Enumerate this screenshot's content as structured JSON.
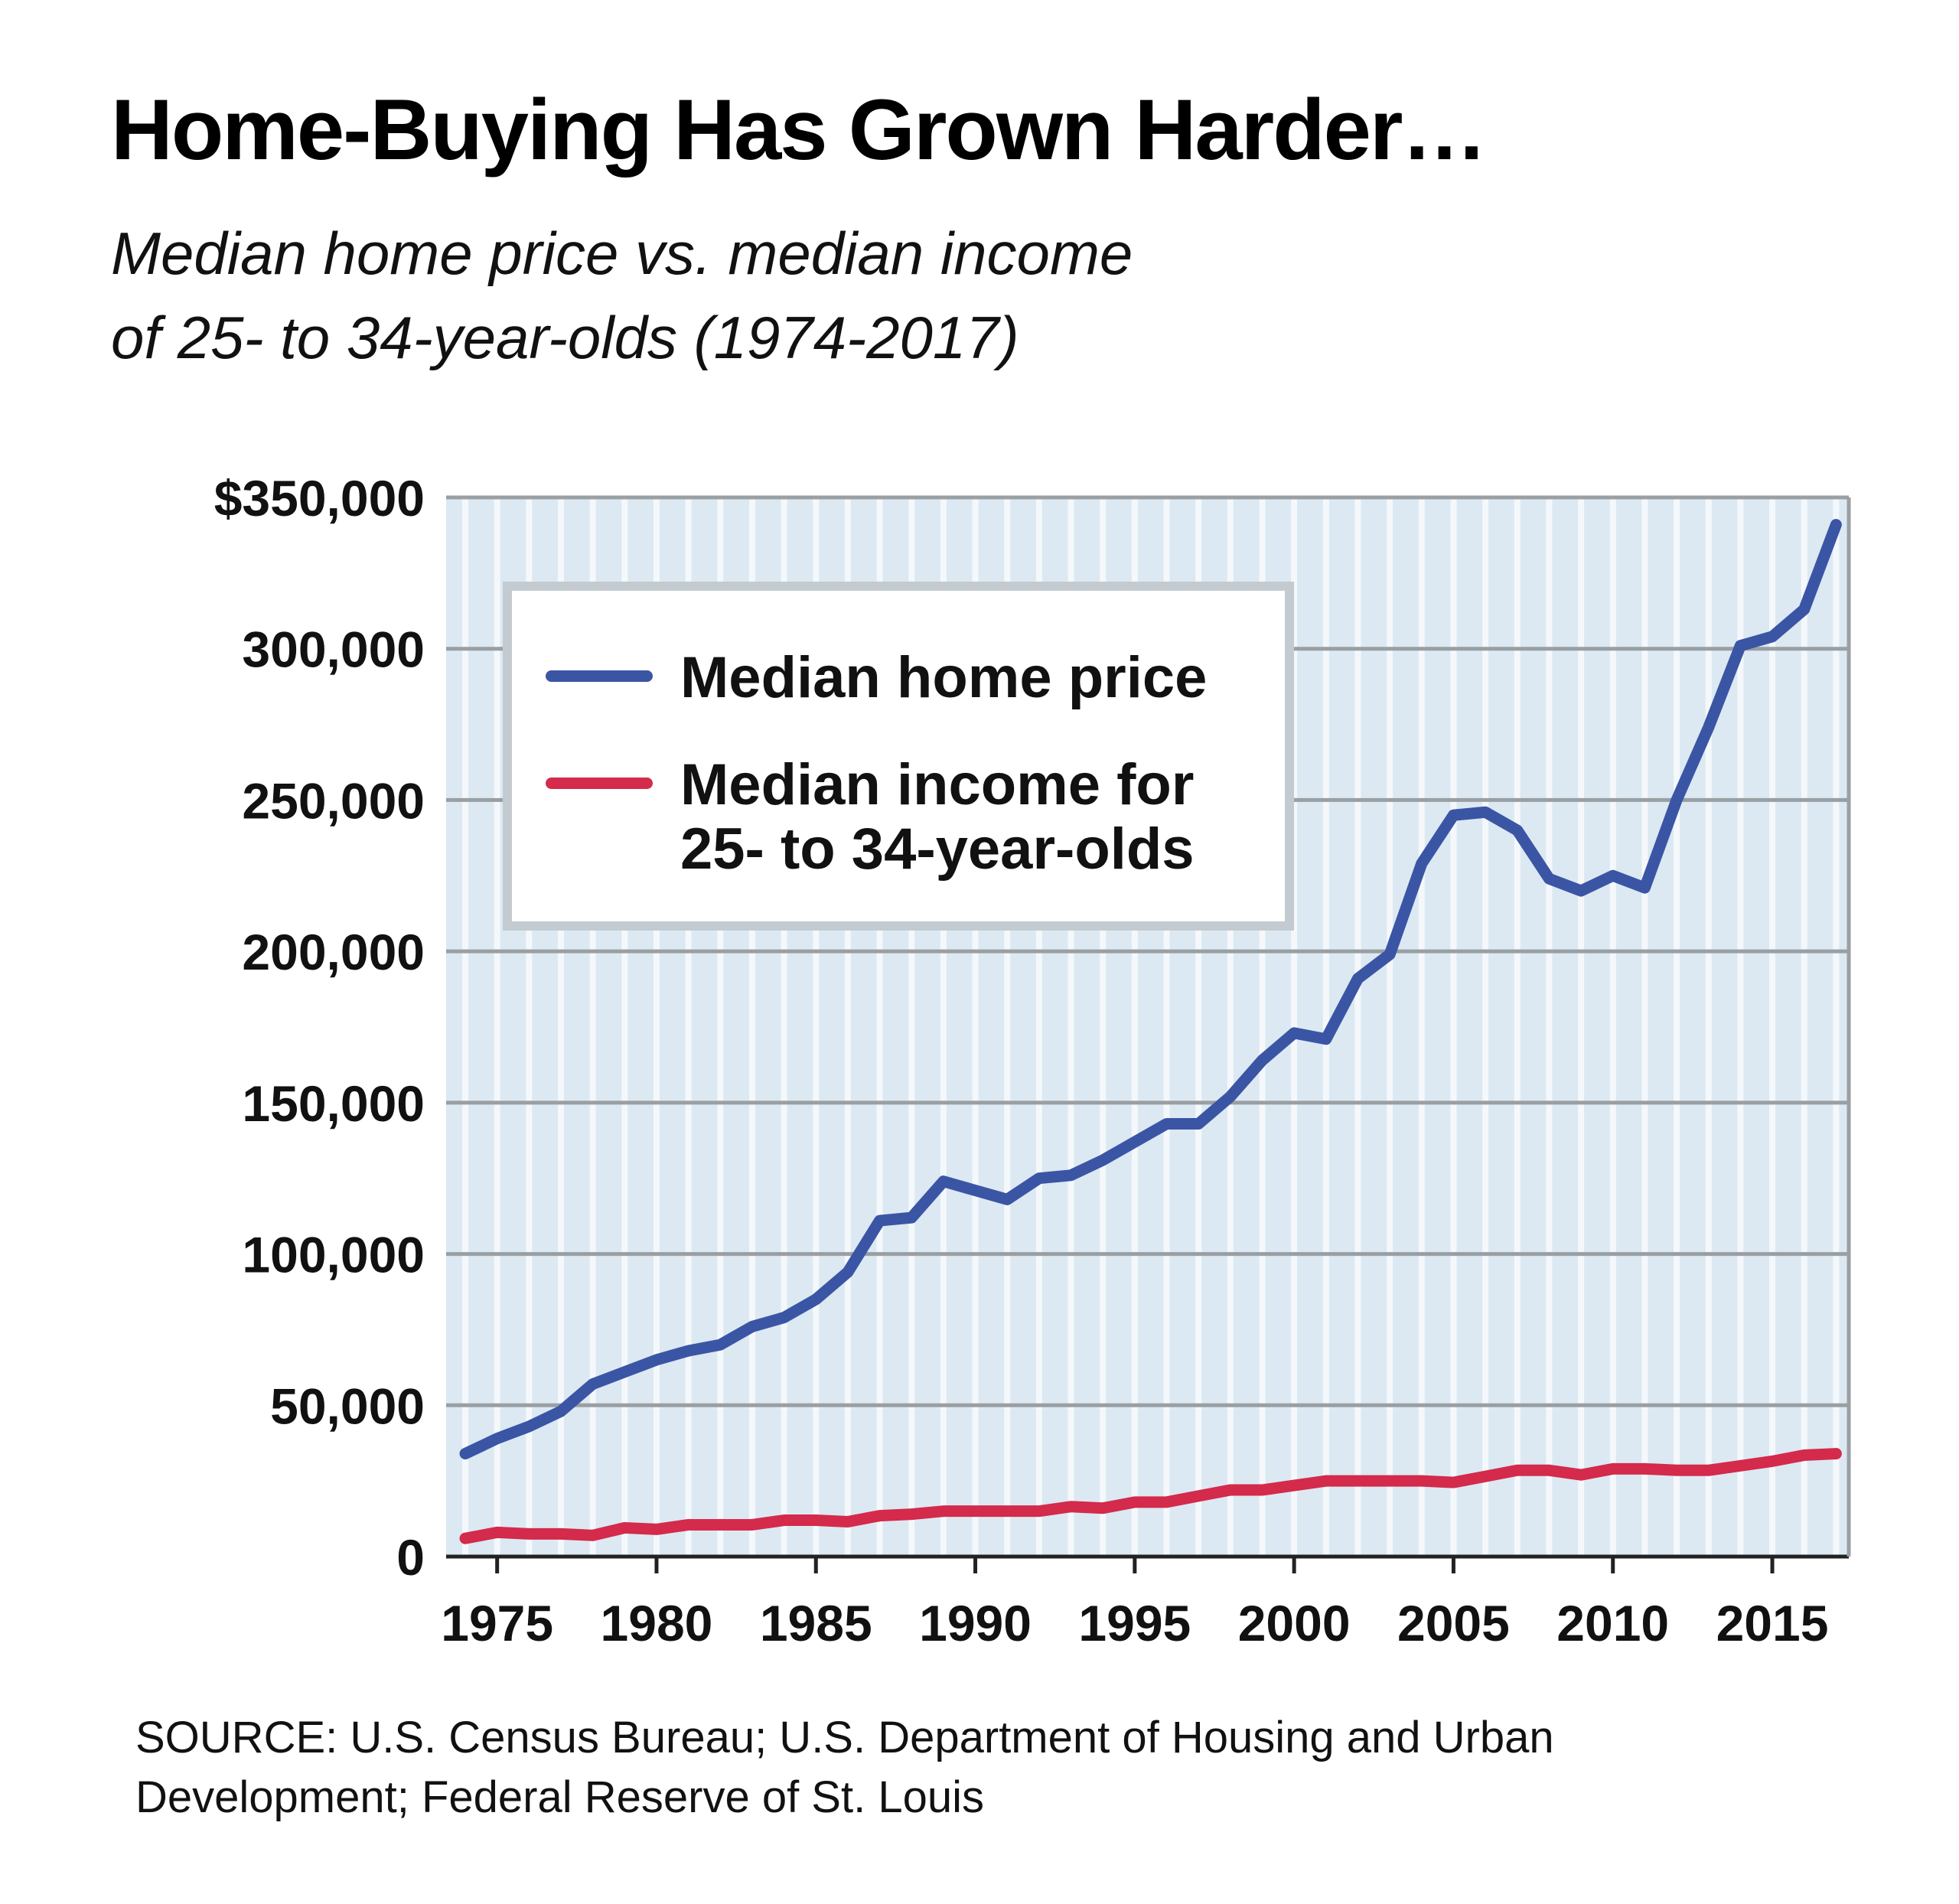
{
  "chart_data": {
    "type": "line",
    "title": "Home-Buying Has Grown Harder…",
    "subtitle": [
      "Median home price vs. median income",
      "of 25- to 34-year-olds (1974-2017)"
    ],
    "source": "SOURCE: U.S. Census Bureau; U.S. Department of Housing and Urban Development; Federal Reserve of St. Louis",
    "x": [
      1974,
      1975,
      1976,
      1977,
      1978,
      1979,
      1980,
      1981,
      1982,
      1983,
      1984,
      1985,
      1986,
      1987,
      1988,
      1989,
      1990,
      1991,
      1992,
      1993,
      1994,
      1995,
      1996,
      1997,
      1998,
      1999,
      2000,
      2001,
      2002,
      2003,
      2004,
      2005,
      2006,
      2007,
      2008,
      2009,
      2010,
      2011,
      2012,
      2013,
      2014,
      2015,
      2016,
      2017
    ],
    "series": [
      {
        "name": "Median home price",
        "color": "#3b55a5",
        "values": [
          34000,
          39000,
          43000,
          48000,
          57000,
          61000,
          65000,
          68000,
          70000,
          76000,
          79000,
          85000,
          94000,
          111000,
          112000,
          124000,
          121000,
          118000,
          125000,
          126000,
          131000,
          137000,
          143000,
          143000,
          152000,
          164000,
          173000,
          171000,
          191000,
          199000,
          229000,
          245000,
          246000,
          240000,
          224000,
          220000,
          225000,
          221000,
          250000,
          274000,
          301000,
          304000,
          313000,
          341000
        ]
      },
      {
        "name": "Median income for 25- to 34-year-olds",
        "color": "#d42a4b",
        "values": [
          6000,
          8000,
          7500,
          7500,
          7000,
          9500,
          9000,
          10500,
          10500,
          10500,
          12000,
          12000,
          11500,
          13500,
          14000,
          15000,
          15000,
          15000,
          15000,
          16500,
          16000,
          18000,
          18000,
          20000,
          22000,
          22000,
          23500,
          25000,
          25000,
          25000,
          25000,
          24500,
          26500,
          28500,
          28500,
          27000,
          29000,
          29000,
          28500,
          28500,
          30000,
          31500,
          33500,
          34000
        ]
      }
    ],
    "xlim": [
      1973.4,
      2017.4
    ],
    "xticks": [
      1975,
      1980,
      1985,
      1990,
      1995,
      2000,
      2005,
      2010,
      2015
    ],
    "ylim": [
      0,
      350000
    ],
    "yticks": [
      0,
      {
        "value": 50000,
        "label": "50,000"
      },
      {
        "value": 100000,
        "label": "100,000"
      },
      {
        "value": 150000,
        "label": "150,000"
      },
      {
        "value": 200000,
        "label": "200,000"
      },
      {
        "value": 250000,
        "label": "250,000"
      },
      {
        "value": 300000,
        "label": "300,000"
      },
      {
        "value": 350000,
        "label": "$350,000"
      }
    ],
    "grid": true,
    "legend_loc": "upper left"
  }
}
